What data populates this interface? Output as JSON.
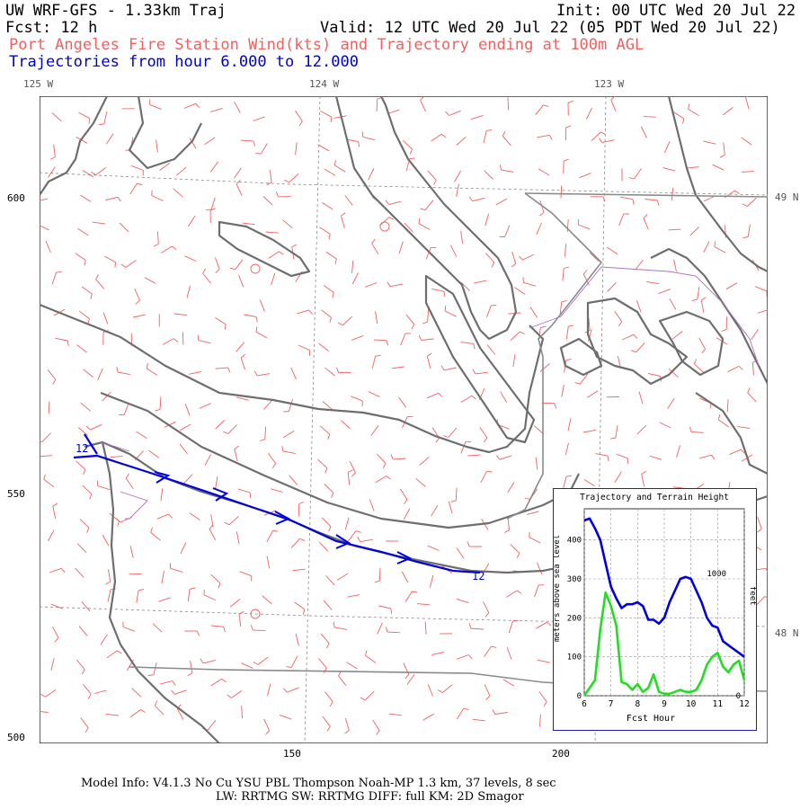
{
  "header": {
    "model": "UW WRF-GFS - 1.33km Traj",
    "init": "Init: 00 UTC Wed 20 Jul 22",
    "fcst": "Fcst:  12 h",
    "valid": "Valid: 12 UTC Wed 20 Jul 22 (05 PDT Wed 20 Jul 22)",
    "subtitle": "Port Angeles Fire Station Wind(kts) and Trajectory ending at 100m AGL",
    "trajectories": "Trajectories from hour   6.000 to  12.000"
  },
  "map": {
    "lon_labels": [
      "125 W",
      "124 W",
      "123 W"
    ],
    "lat_labels": [
      "49 N",
      "48 N"
    ],
    "y_ticks": [
      "600",
      "550",
      "500"
    ],
    "x_ticks": [
      "150",
      "200"
    ],
    "traj_start_label": "12",
    "traj_end_label": "12",
    "colors": {
      "coast": "#707070",
      "wind": "#f06060",
      "trajectory": "#0000dd",
      "border": "#b070c0"
    }
  },
  "inset": {
    "title": "Trajectory and Terrain Height",
    "xlabel": "Fcst Hour",
    "ylabel_left": "meters above sea level",
    "ylabel_right": "feet",
    "feet_ticks": [
      "1000",
      "0"
    ]
  },
  "chart_data": {
    "type": "line",
    "title": "Trajectory and Terrain Height",
    "xlabel": "Fcst Hour",
    "ylabel": "meters above sea level",
    "xlim": [
      6,
      12
    ],
    "ylim": [
      0,
      480
    ],
    "x_ticks": [
      6,
      7,
      8,
      9,
      10,
      11,
      12
    ],
    "y_ticks": [
      0,
      100,
      200,
      300,
      400
    ],
    "grid": true,
    "series": [
      {
        "color": "#0000dd",
        "x": [
          6.0,
          6.2,
          6.4,
          6.6,
          6.8,
          7.0,
          7.2,
          7.4,
          7.6,
          7.8,
          8.0,
          8.2,
          8.4,
          8.6,
          8.8,
          9.0,
          9.2,
          9.4,
          9.6,
          9.8,
          10.0,
          10.2,
          10.4,
          10.6,
          10.8,
          11.0,
          11.2,
          11.4,
          11.6,
          11.8,
          12.0
        ],
        "y": [
          450,
          455,
          430,
          400,
          340,
          280,
          250,
          225,
          235,
          235,
          240,
          230,
          195,
          195,
          185,
          200,
          240,
          270,
          300,
          305,
          300,
          270,
          240,
          200,
          180,
          175,
          140,
          130,
          120,
          110,
          100
        ]
      },
      {
        "color": "#22dd22",
        "x": [
          6.0,
          6.2,
          6.4,
          6.6,
          6.8,
          7.0,
          7.2,
          7.4,
          7.6,
          7.8,
          8.0,
          8.2,
          8.4,
          8.6,
          8.8,
          9.0,
          9.2,
          9.4,
          9.6,
          9.8,
          10.0,
          10.2,
          10.4,
          10.6,
          10.8,
          11.0,
          11.2,
          11.4,
          11.6,
          11.8,
          12.0
        ],
        "y": [
          0,
          20,
          40,
          170,
          265,
          230,
          180,
          35,
          30,
          15,
          30,
          10,
          20,
          55,
          10,
          5,
          5,
          10,
          15,
          10,
          10,
          15,
          40,
          80,
          100,
          110,
          75,
          60,
          80,
          90,
          40
        ]
      }
    ]
  },
  "footer": {
    "line1": "Model Info: V4.1.3    No Cu    YSU PBL   Thompson     Noah-MP    1.3 km,  37 levels,    8 sec",
    "line2": "LW: RRTMG SW: RRTMG    DIFF: full    KM: 2D Smagor"
  }
}
